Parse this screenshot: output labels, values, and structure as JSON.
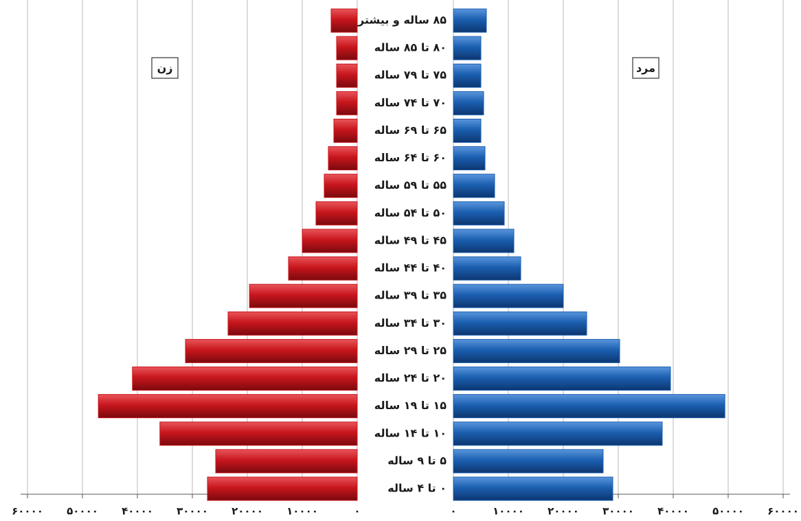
{
  "chart_data": {
    "type": "pyramid",
    "categories": [
      "۰ تا ۴ ساله",
      "۵ تا ۹ ساله",
      "۱۰ تا ۱۴ ساله",
      "۱۵ تا ۱۹ ساله",
      "۲۰ تا ۲۴ ساله",
      "۲۵ تا ۲۹ ساله",
      "۳۰ تا ۳۴ ساله",
      "۳۵ تا ۳۹ ساله",
      "۴۰ تا ۴۴ ساله",
      "۴۵ تا ۴۹ ساله",
      "۵۰ تا ۵۴ ساله",
      "۵۵ تا ۵۹ ساله",
      "۶۰ تا ۶۴ ساله",
      "۶۵ تا ۶۹ ساله",
      "۷۰ تا ۷۴ ساله",
      "۷۵ تا ۷۹ ساله",
      "۸۰ تا ۸۵ ساله",
      "۸۵ ساله و بیشتر"
    ],
    "series": [
      {
        "name": "زن",
        "color": "#c8161d",
        "values": [
          27250,
          25750,
          35900,
          47100,
          40900,
          31250,
          23500,
          19600,
          12500,
          10000,
          7500,
          6000,
          5250,
          4250,
          3750,
          3750,
          3750,
          4750
        ]
      },
      {
        "name": "مرد",
        "color": "#1b5fb0",
        "values": [
          29000,
          27250,
          38000,
          49400,
          39500,
          30250,
          24250,
          20000,
          12250,
          11000,
          9250,
          7500,
          5750,
          5000,
          5500,
          5000,
          5000,
          6000
        ]
      }
    ],
    "xlim": [
      0,
      60000
    ],
    "xticks": [
      {
        "value": 0,
        "label": "۰"
      },
      {
        "value": 10000,
        "label": "۱۰۰۰۰"
      },
      {
        "value": 20000,
        "label": "۲۰۰۰۰"
      },
      {
        "value": 30000,
        "label": "۳۰۰۰۰"
      },
      {
        "value": 40000,
        "label": "۴۰۰۰۰"
      },
      {
        "value": 50000,
        "label": "۵۰۰۰۰"
      },
      {
        "value": 60000,
        "label": "۶۰۰۰۰"
      }
    ],
    "grid": true
  }
}
